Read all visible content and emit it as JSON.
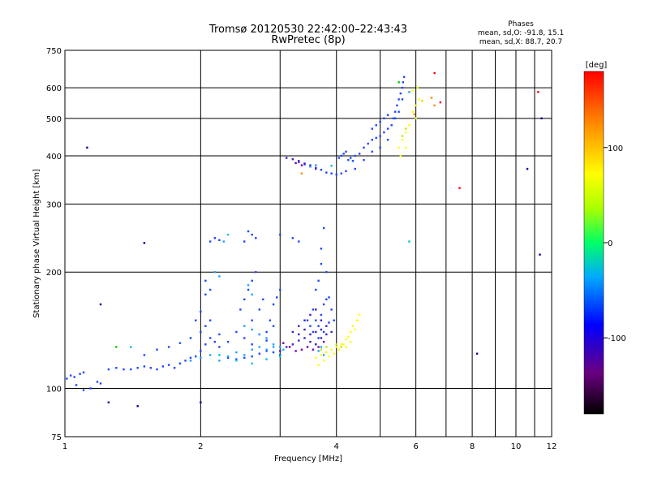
{
  "chart_data": {
    "type": "scatter",
    "title": "Tromsø 20120530 22:42:00–22:43:43",
    "subtitle": "RwPretec (8p)",
    "stats_title": "Phases",
    "stats_line1": "mean, sd,O: -91.8, 15.1",
    "stats_line2": "mean, sd,X:  88.7, 20.7",
    "xlabel": "Frequency [MHz]",
    "ylabel": "Stationary phase Virtual Height [km]",
    "xscale": "log",
    "yscale": "log",
    "xlim": [
      1,
      12
    ],
    "ylim": [
      75,
      750
    ],
    "x_ticks": [
      1,
      2,
      4,
      6,
      8,
      10,
      12
    ],
    "x_tick_labels": [
      "1",
      "2",
      "4",
      "6",
      "8",
      "10",
      "12"
    ],
    "x_grid": [
      1,
      2,
      3,
      4,
      5,
      6,
      7,
      8,
      9,
      10,
      11,
      12
    ],
    "y_ticks": [
      75,
      100,
      200,
      300,
      400,
      500,
      600,
      750
    ],
    "y_tick_labels": [
      "75",
      "100",
      "200",
      "300",
      "400",
      "500",
      "600",
      "750"
    ],
    "grid": true,
    "colorbar": {
      "label": "[deg]",
      "range": [
        -180,
        180
      ],
      "ticks": [
        100,
        0,
        -100
      ],
      "tick_labels": [
        "100",
        "0",
        "-100"
      ]
    },
    "series": [
      {
        "color": "#1e46ff",
        "points": [
          [
            1.01,
            106
          ],
          [
            1.03,
            108
          ],
          [
            1.05,
            107
          ],
          [
            1.08,
            109
          ],
          [
            1.1,
            110
          ],
          [
            1.06,
            102
          ],
          [
            1.1,
            99
          ],
          [
            1.14,
            100
          ],
          [
            1.18,
            104
          ],
          [
            1.2,
            103
          ],
          [
            1.25,
            112
          ],
          [
            1.3,
            113
          ],
          [
            1.35,
            112
          ],
          [
            1.4,
            112
          ],
          [
            1.45,
            113
          ],
          [
            1.5,
            114
          ],
          [
            1.55,
            113
          ],
          [
            1.6,
            112
          ],
          [
            1.65,
            114
          ],
          [
            1.7,
            115
          ],
          [
            1.75,
            113
          ],
          [
            1.8,
            116
          ],
          [
            1.85,
            118
          ],
          [
            1.9,
            120
          ],
          [
            1.95,
            121
          ],
          [
            2.0,
            125
          ],
          [
            2.05,
            130
          ],
          [
            2.1,
            135
          ],
          [
            2.15,
            132
          ],
          [
            2.2,
            128
          ],
          [
            2.3,
            120
          ],
          [
            2.4,
            119
          ],
          [
            2.5,
            120
          ],
          [
            2.6,
            121
          ],
          [
            2.7,
            123
          ],
          [
            2.8,
            125
          ],
          [
            2.9,
            124
          ],
          [
            3.0,
            122
          ],
          [
            1.5,
            122
          ],
          [
            1.6,
            126
          ],
          [
            1.7,
            128
          ],
          [
            1.8,
            131
          ],
          [
            1.9,
            135
          ],
          [
            2.0,
            140
          ],
          [
            2.05,
            145
          ],
          [
            2.1,
            150
          ],
          [
            2.2,
            138
          ],
          [
            2.3,
            132
          ],
          [
            1.95,
            150
          ],
          [
            2.0,
            158
          ],
          [
            2.05,
            175
          ],
          [
            2.1,
            180
          ],
          [
            2.05,
            190
          ],
          [
            2.45,
            160
          ],
          [
            2.5,
            170
          ],
          [
            2.55,
            180
          ],
          [
            2.6,
            190
          ],
          [
            2.65,
            200
          ],
          [
            2.6,
            150
          ],
          [
            2.7,
            160
          ],
          [
            2.75,
            170
          ],
          [
            2.8,
            140
          ],
          [
            2.85,
            150
          ],
          [
            2.9,
            165
          ],
          [
            2.95,
            172
          ],
          [
            3.0,
            180
          ],
          [
            2.4,
            140
          ],
          [
            2.5,
            135
          ],
          [
            2.6,
            130
          ],
          [
            2.7,
            138
          ],
          [
            2.8,
            133
          ],
          [
            2.9,
            145
          ],
          [
            2.1,
            240
          ],
          [
            2.15,
            245
          ],
          [
            2.2,
            242
          ],
          [
            2.5,
            240
          ],
          [
            2.55,
            255
          ],
          [
            2.6,
            250
          ],
          [
            2.65,
            245
          ],
          [
            3.0,
            250
          ],
          [
            3.2,
            245
          ],
          [
            3.3,
            240
          ],
          [
            3.6,
            180
          ],
          [
            3.65,
            190
          ],
          [
            3.7,
            210
          ],
          [
            3.7,
            230
          ],
          [
            3.75,
            260
          ],
          [
            3.8,
            200
          ],
          [
            3.55,
            160
          ],
          [
            3.6,
            150
          ],
          [
            3.65,
            145
          ],
          [
            3.7,
            155
          ],
          [
            3.75,
            165
          ],
          [
            3.8,
            170
          ],
          [
            3.85,
            172
          ],
          [
            3.9,
            160
          ],
          [
            3.95,
            150
          ],
          [
            3.45,
            150
          ],
          [
            3.5,
            145
          ],
          [
            3.55,
            140
          ],
          [
            3.6,
            130
          ],
          [
            3.65,
            135
          ],
          [
            3.75,
            140
          ],
          [
            3.85,
            148
          ],
          [
            4.05,
            395
          ],
          [
            4.1,
            400
          ],
          [
            4.15,
            405
          ],
          [
            4.2,
            410
          ],
          [
            4.25,
            390
          ],
          [
            4.3,
            395
          ],
          [
            4.35,
            388
          ],
          [
            4.4,
            400
          ],
          [
            4.5,
            405
          ],
          [
            4.6,
            420
          ],
          [
            4.7,
            430
          ],
          [
            4.8,
            440
          ],
          [
            4.9,
            445
          ],
          [
            5.0,
            450
          ],
          [
            5.1,
            460
          ],
          [
            5.2,
            470
          ],
          [
            5.3,
            480
          ],
          [
            5.35,
            500
          ],
          [
            5.4,
            520
          ],
          [
            5.45,
            540
          ],
          [
            5.5,
            560
          ],
          [
            5.55,
            580
          ],
          [
            5.6,
            600
          ],
          [
            5.62,
            620
          ],
          [
            5.65,
            640
          ],
          [
            5.6,
            560
          ],
          [
            5.5,
            520
          ],
          [
            5.4,
            500
          ],
          [
            5.2,
            440
          ],
          [
            5.0,
            420
          ],
          [
            4.8,
            410
          ],
          [
            4.6,
            390
          ],
          [
            4.4,
            370
          ],
          [
            4.2,
            365
          ],
          [
            4.1,
            360
          ],
          [
            3.5,
            375
          ],
          [
            3.6,
            370
          ],
          [
            3.7,
            368
          ],
          [
            3.8,
            362
          ],
          [
            3.9,
            360
          ],
          [
            4.0,
            358
          ],
          [
            3.4,
            380
          ],
          [
            3.3,
            385
          ],
          [
            4.8,
            470
          ],
          [
            4.9,
            480
          ],
          [
            5.0,
            490
          ],
          [
            5.1,
            500
          ],
          [
            5.2,
            510
          ]
        ]
      },
      {
        "color": "#3c1ec8",
        "points": [
          [
            3.0,
            125
          ],
          [
            3.1,
            128
          ],
          [
            3.2,
            130
          ],
          [
            3.3,
            133
          ],
          [
            3.4,
            135
          ],
          [
            3.5,
            138
          ],
          [
            3.6,
            140
          ],
          [
            3.7,
            142
          ],
          [
            3.8,
            145
          ],
          [
            3.2,
            140
          ],
          [
            3.3,
            145
          ],
          [
            3.4,
            150
          ],
          [
            3.5,
            155
          ],
          [
            3.6,
            160
          ],
          [
            3.7,
            150
          ],
          [
            3.3,
            138
          ],
          [
            3.4,
            142
          ],
          [
            3.5,
            132
          ],
          [
            3.6,
            130
          ],
          [
            3.7,
            135
          ],
          [
            3.8,
            138
          ],
          [
            3.9,
            140
          ],
          [
            3.1,
            395
          ],
          [
            3.2,
            392
          ],
          [
            3.3,
            388
          ],
          [
            3.4,
            382
          ],
          [
            3.5,
            378
          ],
          [
            3.6,
            372
          ]
        ]
      },
      {
        "color": "#7800a0",
        "points": [
          [
            3.15,
            128
          ],
          [
            3.25,
            125
          ],
          [
            3.35,
            126
          ],
          [
            3.45,
            128
          ],
          [
            3.55,
            126
          ],
          [
            3.65,
            128
          ],
          [
            3.75,
            132
          ],
          [
            3.05,
            131
          ],
          [
            3.25,
            383
          ],
          [
            3.35,
            378
          ]
        ]
      },
      {
        "color": "#1ea0ff",
        "points": [
          [
            1.9,
            118
          ],
          [
            2.0,
            120
          ],
          [
            2.1,
            122
          ],
          [
            2.2,
            118
          ],
          [
            2.3,
            121
          ],
          [
            2.4,
            124
          ],
          [
            2.5,
            122
          ],
          [
            2.6,
            126
          ],
          [
            2.7,
            128
          ],
          [
            2.8,
            126
          ],
          [
            2.9,
            128
          ],
          [
            2.5,
            145
          ],
          [
            2.6,
            142
          ],
          [
            2.7,
            138
          ],
          [
            2.8,
            135
          ],
          [
            2.9,
            130
          ],
          [
            3.0,
            128
          ],
          [
            3.05,
            126
          ],
          [
            2.15,
            200
          ],
          [
            2.2,
            195
          ],
          [
            2.55,
            185
          ],
          [
            2.6,
            175
          ],
          [
            2.25,
            240
          ],
          [
            3.65,
            125
          ],
          [
            3.7,
            128
          ],
          [
            3.75,
            122
          ],
          [
            3.5,
            375
          ],
          [
            3.6,
            378
          ],
          [
            5.8,
            585
          ]
        ]
      },
      {
        "color": "#00c8c8",
        "points": [
          [
            2.2,
            122
          ],
          [
            2.4,
            118
          ],
          [
            2.6,
            116
          ],
          [
            2.8,
            119
          ],
          [
            3.0,
            121
          ],
          [
            2.3,
            250
          ],
          [
            3.9,
            377
          ],
          [
            1.4,
            128
          ],
          [
            5.8,
            240
          ]
        ]
      },
      {
        "color": "#ffff00",
        "points": [
          [
            3.6,
            120
          ],
          [
            3.7,
            122
          ],
          [
            3.8,
            124
          ],
          [
            3.9,
            126
          ],
          [
            4.0,
            128
          ],
          [
            4.1,
            130
          ],
          [
            4.2,
            134
          ],
          [
            4.3,
            140
          ],
          [
            4.4,
            142
          ],
          [
            3.75,
            118
          ],
          [
            3.85,
            121
          ],
          [
            3.95,
            123
          ],
          [
            4.05,
            126
          ],
          [
            4.15,
            130
          ],
          [
            4.25,
            136
          ],
          [
            4.35,
            145
          ],
          [
            4.45,
            150
          ],
          [
            4.2,
            128
          ],
          [
            4.3,
            132
          ],
          [
            5.5,
            420
          ],
          [
            5.6,
            440
          ],
          [
            5.7,
            460
          ],
          [
            5.8,
            480
          ],
          [
            5.9,
            520
          ],
          [
            6.0,
            540
          ],
          [
            6.1,
            560
          ],
          [
            6.0,
            500
          ],
          [
            5.7,
            420
          ],
          [
            5.55,
            400
          ],
          [
            5.9,
            590
          ],
          [
            6.05,
            600
          ],
          [
            4.45,
            150
          ],
          [
            4.5,
            155
          ],
          [
            3.65,
            115
          ]
        ]
      },
      {
        "color": "#c8e600",
        "points": [
          [
            3.7,
            126
          ],
          [
            3.8,
            128
          ],
          [
            4.0,
            130
          ],
          [
            4.1,
            128
          ],
          [
            5.6,
            450
          ],
          [
            5.7,
            470
          ],
          [
            6.2,
            555
          ]
        ]
      },
      {
        "color": "#ff8c00",
        "points": [
          [
            6.5,
            565
          ],
          [
            6.6,
            540
          ],
          [
            5.95,
            512
          ],
          [
            3.35,
            360
          ]
        ]
      },
      {
        "color": "#ff0000",
        "points": [
          [
            6.8,
            550
          ],
          [
            7.5,
            330
          ],
          [
            6.6,
            655
          ],
          [
            11.2,
            585
          ]
        ]
      },
      {
        "color": "#00c800",
        "points": [
          [
            1.3,
            128
          ],
          [
            5.5,
            620
          ]
        ]
      },
      {
        "color": "#0000a0",
        "points": [
          [
            1.12,
            420
          ],
          [
            1.5,
            238
          ],
          [
            8.2,
            123
          ],
          [
            10.6,
            370
          ],
          [
            11.3,
            222
          ],
          [
            11.4,
            500
          ],
          [
            1.25,
            92
          ],
          [
            1.45,
            90
          ],
          [
            1.2,
            165
          ],
          [
            2.0,
            92
          ]
        ]
      }
    ]
  }
}
